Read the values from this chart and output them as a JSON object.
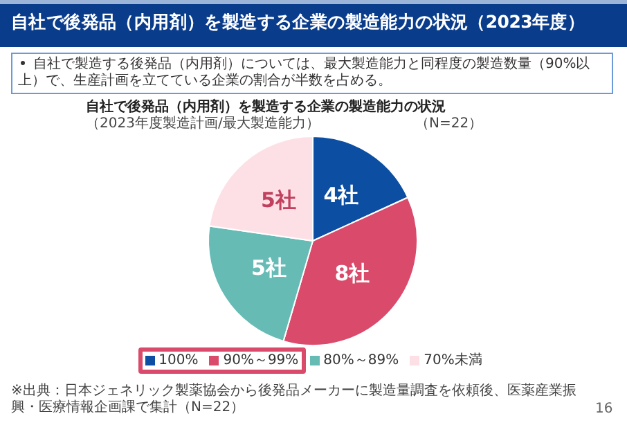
{
  "chart_data": {
    "type": "pie",
    "title": "自社で後発品（内用剤）を製造する企業の製造能力の状況（2023年度）",
    "subtitle": "自社で製造する後発品（内用剤）については、最大製造能力と同程度の製造数量（90%以上）で、生産計画を立てている企業の割合が半数を占める。",
    "annotations": [
      "自社で後発品（内用剤）を製造する企業の製造能力の状況",
      "（2023年度製造計画/最大製造能力）",
      "（N=22）",
      "※出典：日本ジェネリック製薬協会から後発品メーカーに製造量調査を依頼後、医薬産業振興・医療情報企画課で集計（N=22）",
      "16"
    ],
    "categories": [
      "100%",
      "90%～99%",
      "80%～89%",
      "70%未満"
    ],
    "values": [
      4,
      8,
      5,
      5
    ],
    "colors": [
      "#0b4ea2",
      "#d94a6b",
      "#66bbb5",
      "#fde0e6"
    ],
    "value_labels": [
      "4社",
      "8社",
      "5社",
      "5社"
    ],
    "legend": "bottom"
  }
}
